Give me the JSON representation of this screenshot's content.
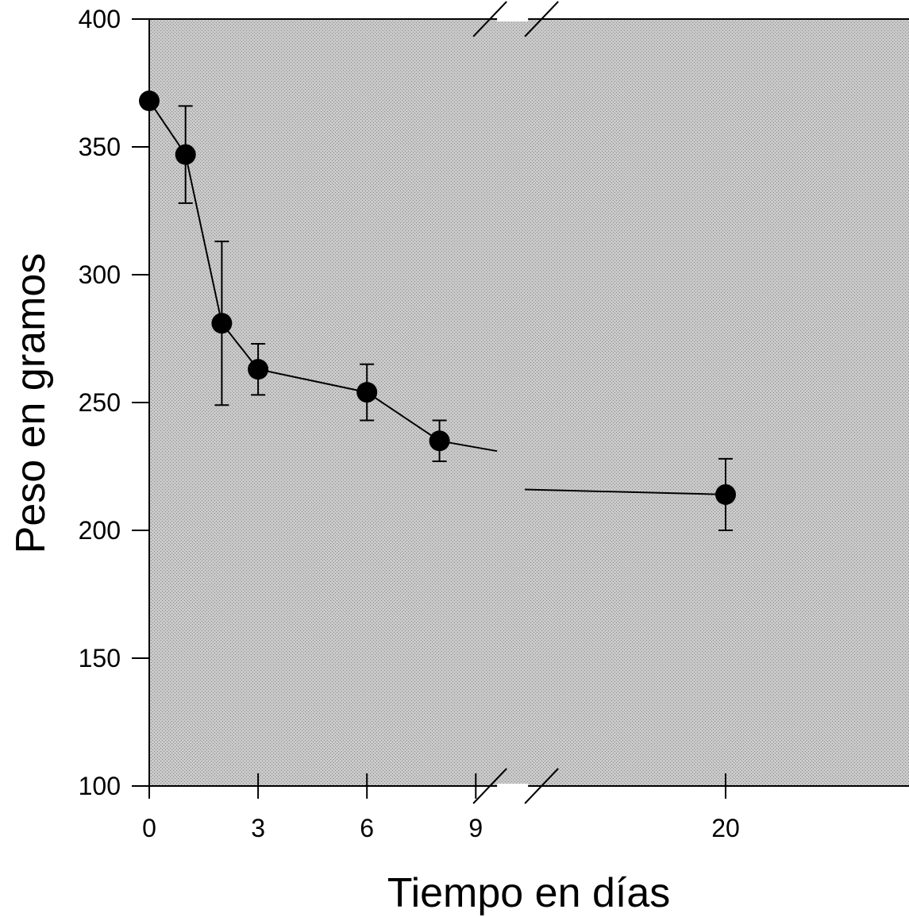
{
  "chart_data": {
    "type": "line",
    "title": "",
    "xlabel": "Tiempo en días",
    "ylabel": "Peso en gramos",
    "x_ticks": [
      0,
      3,
      6,
      9,
      20
    ],
    "y_ticks": [
      100,
      150,
      200,
      250,
      300,
      350,
      400
    ],
    "ylim": [
      100,
      400
    ],
    "x_axis_break": [
      9.5,
      10.5
    ],
    "background": "#b8b8b8",
    "grid": false,
    "legend": "none",
    "series": [
      {
        "x": [
          0,
          1,
          2,
          3,
          6,
          8,
          20
        ],
        "y": [
          368,
          347,
          281,
          263,
          254,
          235,
          214
        ],
        "error": [
          0,
          19,
          32,
          10,
          11,
          8,
          14
        ]
      }
    ]
  }
}
